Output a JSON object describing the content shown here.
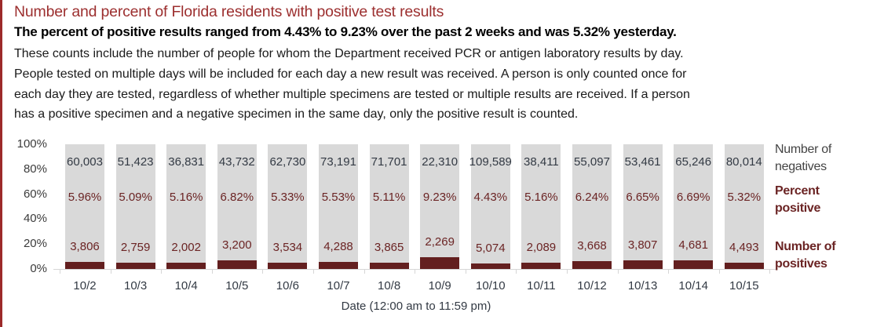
{
  "header": {
    "title": "Number and percent of Florida residents with positive test results",
    "subtitle": "The percent of positive results ranged from 4.43% to 9.23% over the past 2 weeks and was 5.32% yesterday.",
    "description_lines": [
      "These counts include the number of people for whom the Department received PCR or antigen laboratory results by day.",
      "People tested on multiple days will be included for each day a new result was received. A person is only counted once for",
      "each day they are tested, regardless of whether multiple specimens are tested or multiple results are received. If a person",
      "has a positive specimen and a negative specimen in the same day, only the positive result is counted."
    ]
  },
  "colors": {
    "title": "#9c2f2f",
    "negatives_bar": "#d9d9d9",
    "positives_bar": "#631f1f",
    "positive_text": "#6b2424",
    "negative_text": "#333a44"
  },
  "chart_data": {
    "type": "bar",
    "stacked": true,
    "percent_stacked": true,
    "title": "Number and percent of Florida residents with positive test results",
    "xlabel": "Date (12:00 am to 11:59 pm)",
    "ylabel": "",
    "ylim": [
      0,
      100
    ],
    "yticks": [
      "100%",
      "80%",
      "60%",
      "40%",
      "20%",
      "0%"
    ],
    "categories": [
      "10/2",
      "10/3",
      "10/4",
      "10/5",
      "10/6",
      "10/7",
      "10/8",
      "10/9",
      "10/10",
      "10/11",
      "10/12",
      "10/13",
      "10/14",
      "10/15"
    ],
    "series": [
      {
        "name": "Number of negatives",
        "values": [
          60003,
          51423,
          36831,
          43732,
          62730,
          73191,
          71701,
          22310,
          109589,
          38411,
          55097,
          53461,
          65246,
          80014
        ],
        "labels": [
          "60,003",
          "51,423",
          "36,831",
          "43,732",
          "62,730",
          "73,191",
          "71,701",
          "22,310",
          "109,589",
          "38,411",
          "55,097",
          "53,461",
          "65,246",
          "80,014"
        ]
      },
      {
        "name": "Number of positives",
        "values": [
          3806,
          2759,
          2002,
          3200,
          3534,
          4288,
          3865,
          2269,
          5074,
          2089,
          3668,
          3807,
          4681,
          4493
        ],
        "labels": [
          "3,806",
          "2,759",
          "2,002",
          "3,200",
          "3,534",
          "4,288",
          "3,865",
          "2,269",
          "5,074",
          "2,089",
          "3,668",
          "3,807",
          "4,681",
          "4,493"
        ]
      },
      {
        "name": "Percent positive",
        "values": [
          5.96,
          5.09,
          5.16,
          6.82,
          5.33,
          5.53,
          5.11,
          9.23,
          4.43,
          5.16,
          6.24,
          6.65,
          6.69,
          5.32
        ],
        "labels": [
          "5.96%",
          "5.09%",
          "5.16%",
          "6.82%",
          "5.33%",
          "5.53%",
          "5.11%",
          "9.23%",
          "4.43%",
          "5.16%",
          "6.24%",
          "6.65%",
          "6.69%",
          "5.32%"
        ]
      }
    ],
    "legend": {
      "position": "right",
      "entries": [
        [
          "Number of",
          "negatives"
        ],
        [
          "Percent",
          "positive"
        ],
        [
          "Number of",
          "positives"
        ]
      ]
    },
    "grid": false
  }
}
